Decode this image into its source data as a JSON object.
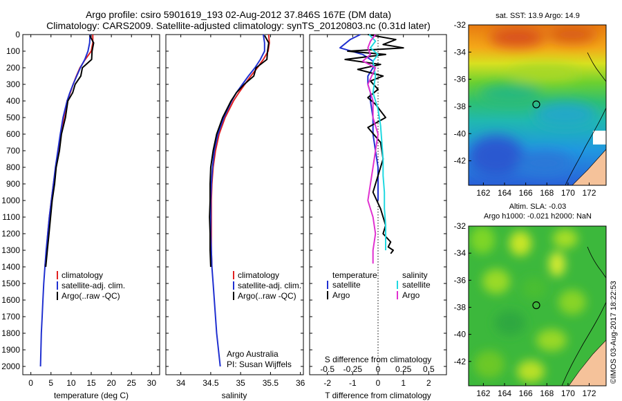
{
  "header": {
    "line1": "Argo profile: csiro 5901619_193 02-Aug-2012 37.846S 167E (DM data)",
    "line2": "Climatology: CARS2009. Satellite-adjusted climatology: synTS_20120803.nc (0.31d later)"
  },
  "credit": "©IMOS 03-Aug-2017 18:22:53",
  "colors": {
    "climatology": "#e02020",
    "satellite": "#1f2fd0",
    "argo": "#000000",
    "satellite_salinity": "#20d8e0",
    "argo_salinity": "#e030d0"
  },
  "chart_data": [
    {
      "type": "line",
      "xlabel": "temperature (deg C)",
      "xlim": [
        -2,
        32
      ],
      "xticks": [
        "0",
        "5",
        "10",
        "15",
        "20",
        "25",
        "30"
      ],
      "ylim": [
        0,
        2050
      ],
      "yticks": [
        "0",
        "100",
        "200",
        "300",
        "400",
        "500",
        "600",
        "700",
        "800",
        "900",
        "1000",
        "1100",
        "1200",
        "1300",
        "1400",
        "1500",
        "1600",
        "1700",
        "1800",
        "1900",
        "2000"
      ],
      "legend": [
        "climatology",
        "satellite-adj. clim.",
        "Argo(..raw -QC)"
      ],
      "series": [
        {
          "name": "climatology",
          "color": "#e02020",
          "x": [
            15.4,
            15.4,
            15.0,
            13.5,
            12.2,
            11.3,
            10.5,
            9.8,
            9.0,
            8.2,
            7.5,
            6.8,
            6.2,
            5.6,
            5.1,
            4.6,
            4.2,
            3.9,
            3.5
          ],
          "y": [
            0,
            50,
            100,
            150,
            200,
            250,
            300,
            350,
            400,
            500,
            600,
            700,
            800,
            900,
            1000,
            1100,
            1200,
            1300,
            1400
          ]
        },
        {
          "name": "satellite-adj. clim.",
          "color": "#1f2fd0",
          "x": [
            14.7,
            14.6,
            14.2,
            13.4,
            12.3,
            11.4,
            10.5,
            9.7,
            9.0,
            8.0,
            7.3,
            6.7,
            6.1,
            5.6,
            5.1,
            4.6,
            4.2,
            3.8,
            3.5,
            3.2,
            3.0,
            2.8,
            2.6,
            2.5,
            2.4
          ],
          "y": [
            0,
            50,
            100,
            150,
            200,
            250,
            300,
            350,
            400,
            500,
            600,
            700,
            800,
            900,
            1000,
            1100,
            1200,
            1300,
            1400,
            1500,
            1600,
            1700,
            1800,
            1900,
            2000
          ]
        },
        {
          "name": "Argo(..raw -QC)",
          "color": "#000000",
          "x": [
            14.6,
            15.6,
            15.2,
            15.1,
            12.8,
            12.4,
            11.0,
            10.4,
            9.2,
            8.6,
            7.6,
            7.1,
            6.3,
            5.9,
            5.3,
            4.9,
            4.5,
            4.1,
            3.7
          ],
          "y": [
            5,
            50,
            100,
            150,
            200,
            250,
            300,
            350,
            400,
            500,
            600,
            700,
            800,
            900,
            1000,
            1100,
            1200,
            1300,
            1400
          ]
        }
      ]
    },
    {
      "type": "line",
      "xlabel": "salinity",
      "xlim": [
        33.75,
        36.05
      ],
      "xticks": [
        "34",
        "34.5",
        "35",
        "35.5",
        "36"
      ],
      "ylim": [
        0,
        2050
      ],
      "legend": [
        "climatology",
        "satellite-adj. clim.",
        "Argo(..raw -QC)"
      ],
      "annotation": [
        "Argo Australia",
        "PI: Susan Wijffels"
      ],
      "series": [
        {
          "name": "climatology",
          "color": "#e02020",
          "x": [
            35.47,
            35.48,
            35.46,
            35.38,
            35.28,
            35.17,
            35.07,
            34.97,
            34.88,
            34.74,
            34.64,
            34.58,
            34.54,
            34.52,
            34.51,
            34.51,
            34.51,
            34.51,
            34.52
          ],
          "y": [
            0,
            50,
            100,
            150,
            200,
            250,
            300,
            350,
            400,
            500,
            600,
            700,
            800,
            900,
            1000,
            1100,
            1200,
            1300,
            1400
          ]
        },
        {
          "name": "satellite-adj. clim.",
          "color": "#1f2fd0",
          "x": [
            35.38,
            35.4,
            35.4,
            35.33,
            35.24,
            35.13,
            35.03,
            34.93,
            34.85,
            34.72,
            34.62,
            34.56,
            34.53,
            34.51,
            34.5,
            34.5,
            34.5,
            34.51,
            34.52,
            34.54,
            34.56,
            34.58,
            34.6,
            34.63,
            34.66
          ],
          "y": [
            0,
            50,
            100,
            150,
            200,
            250,
            300,
            350,
            400,
            500,
            600,
            700,
            800,
            900,
            1000,
            1100,
            1200,
            1300,
            1400,
            1500,
            1600,
            1700,
            1800,
            1900,
            2000
          ]
        },
        {
          "name": "Argo(..raw -QC)",
          "color": "#000000",
          "x": [
            35.4,
            35.47,
            35.45,
            35.44,
            35.26,
            35.22,
            35.06,
            34.93,
            34.84,
            34.7,
            34.6,
            34.54,
            34.5,
            34.49,
            34.49,
            34.48,
            34.49,
            34.49,
            34.5
          ],
          "y": [
            5,
            50,
            100,
            150,
            200,
            250,
            300,
            350,
            400,
            500,
            600,
            700,
            800,
            900,
            1000,
            1100,
            1200,
            1300,
            1400
          ]
        }
      ]
    },
    {
      "type": "line",
      "xlabel": "T difference from climatology",
      "xlabel_top": "S difference from climatology",
      "xlim": [
        -2.7,
        2.7
      ],
      "xticks": [
        "-2",
        "-1",
        "0",
        "1",
        "2"
      ],
      "xticks_top": [
        "-0.5",
        "-0.25",
        "0",
        "0.25",
        "0.5"
      ],
      "ylim": [
        0,
        2050
      ],
      "legend_left_title": "temperature",
      "legend_right_title": "salinity",
      "legend_left": [
        "satellite",
        "Argo"
      ],
      "legend_right": [
        "satellite",
        "Argo"
      ],
      "series": [
        {
          "name": "temperature satellite",
          "color": "#1f2fd0",
          "x": [
            -0.7,
            -1.1,
            -1.5,
            -0.6,
            -0.2,
            -0.2,
            -0.4,
            -0.4,
            -0.3,
            -0.3,
            -0.2,
            -0.2,
            -0.1,
            0.0,
            0.0,
            0.0
          ],
          "y": [
            0,
            30,
            80,
            120,
            160,
            200,
            250,
            300,
            350,
            400,
            500,
            600,
            700,
            800,
            900,
            1000
          ]
        },
        {
          "name": "temperature Argo",
          "color": "#000000",
          "x": [
            -0.4,
            0.7,
            0.2,
            1.0,
            -1.2,
            0.3,
            -1.3,
            0.1,
            -0.8,
            0.2,
            -0.3,
            0.0,
            -0.4,
            -0.1,
            0.3,
            -0.4,
            0.1,
            0.2,
            0.0,
            -0.2,
            0.1,
            0.3,
            0.2,
            0.5,
            0.4,
            0.6,
            0.5
          ],
          "y": [
            0,
            30,
            60,
            80,
            100,
            120,
            150,
            180,
            210,
            250,
            280,
            330,
            380,
            420,
            500,
            560,
            650,
            750,
            850,
            950,
            1050,
            1150,
            1200,
            1250,
            1280,
            1300,
            1320
          ]
        },
        {
          "name": "salinity satellite",
          "color": "#20d8e0",
          "x": [
            -0.35,
            -0.1,
            -0.3,
            0.0,
            -0.2,
            -0.1,
            -0.2,
            0.0,
            0.1,
            0.15,
            0.2,
            0.2,
            0.25,
            0.25,
            0.3,
            0.3,
            0.3
          ],
          "y": [
            0,
            40,
            80,
            120,
            160,
            250,
            350,
            450,
            550,
            650,
            750,
            850,
            950,
            1050,
            1150,
            1250,
            1300
          ]
        },
        {
          "name": "salinity Argo",
          "color": "#e030d0",
          "x": [
            -0.1,
            -0.3,
            -0.4,
            -0.3,
            -0.6,
            -0.1,
            -0.4,
            -0.2,
            -0.2,
            0.0,
            -0.1,
            -0.2,
            -0.3,
            -0.4,
            -0.2,
            -0.1,
            -0.2,
            -0.2
          ],
          "y": [
            0,
            40,
            80,
            120,
            160,
            200,
            300,
            400,
            500,
            600,
            700,
            800,
            900,
            1000,
            1100,
            1200,
            1300,
            1380
          ]
        }
      ]
    },
    {
      "type": "heatmap",
      "title": "sat. SST: 13.9 Argo: 14.9",
      "xticks": [
        "162",
        "164",
        "166",
        "168",
        "170",
        "172"
      ],
      "yticks": [
        "-32",
        "-34",
        "-36",
        "-38",
        "-40",
        "-42"
      ],
      "marker": {
        "lon": 167,
        "lat": -37.85
      }
    },
    {
      "type": "heatmap",
      "title": "Altim. SLA: -0.03",
      "subtitle": "Argo h1000: -0.021 h2000: NaN",
      "xticks": [
        "162",
        "164",
        "166",
        "168",
        "170",
        "172"
      ],
      "yticks": [
        "-32",
        "-34",
        "-36",
        "-38",
        "-40",
        "-42"
      ],
      "marker": {
        "lon": 167,
        "lat": -37.85
      }
    }
  ]
}
